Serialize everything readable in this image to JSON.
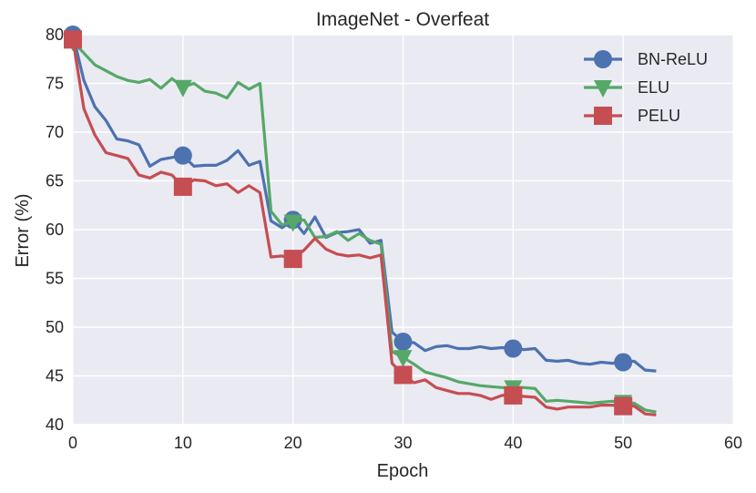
{
  "chart_data": {
    "type": "line",
    "title": "ImageNet - Overfeat",
    "xlabel": "Epoch",
    "ylabel": "Error (%)",
    "xlim": [
      0,
      60
    ],
    "ylim": [
      40,
      80
    ],
    "xticks": [
      0,
      10,
      20,
      30,
      40,
      50,
      60
    ],
    "yticks": [
      40,
      45,
      50,
      55,
      60,
      65,
      70,
      75,
      80
    ],
    "xtick_labels": [
      "0",
      "10",
      "20",
      "30",
      "40",
      "50",
      "60"
    ],
    "ytick_labels": [
      "40",
      "45",
      "50",
      "55",
      "60",
      "65",
      "70",
      "75",
      "80"
    ],
    "grid": true,
    "legend_position": "top-right",
    "marker_epochs": [
      0,
      10,
      20,
      30,
      40,
      50
    ],
    "colors": {
      "background": "#EAEAF2",
      "grid": "#FFFFFF"
    },
    "series": [
      {
        "name": "BN-ReLU",
        "color": "#4C72B0",
        "marker": "circle",
        "x": [
          0,
          1,
          2,
          3,
          4,
          5,
          6,
          7,
          8,
          9,
          10,
          11,
          12,
          13,
          14,
          15,
          16,
          17,
          18,
          19,
          20,
          21,
          22,
          23,
          24,
          25,
          26,
          27,
          28,
          29,
          30,
          31,
          32,
          33,
          34,
          35,
          36,
          37,
          38,
          39,
          40,
          41,
          42,
          43,
          44,
          45,
          46,
          47,
          48,
          49,
          50,
          51,
          52,
          53
        ],
        "values": [
          80,
          75.3,
          72.6,
          71.2,
          69.3,
          69.1,
          68.7,
          66.5,
          67.2,
          67.4,
          67.6,
          66.5,
          66.6,
          66.6,
          67.1,
          68.1,
          66.6,
          67.0,
          60.9,
          60.2,
          61.0,
          59.6,
          61.3,
          59.2,
          59.7,
          59.8,
          60.0,
          58.6,
          58.9,
          49.5,
          48.5,
          48.4,
          47.6,
          48.0,
          48.1,
          47.8,
          47.8,
          48.0,
          47.8,
          47.9,
          47.8,
          47.7,
          47.8,
          46.6,
          46.5,
          46.6,
          46.3,
          46.2,
          46.4,
          46.3,
          46.4,
          46.5,
          45.6,
          45.5
        ]
      },
      {
        "name": "ELU",
        "color": "#55A868",
        "marker": "triangle-down",
        "x": [
          0,
          1,
          2,
          3,
          4,
          5,
          6,
          7,
          8,
          9,
          10,
          11,
          12,
          13,
          14,
          15,
          16,
          17,
          18,
          19,
          20,
          21,
          22,
          23,
          24,
          25,
          26,
          27,
          28,
          29,
          30,
          31,
          32,
          33,
          34,
          35,
          36,
          37,
          38,
          39,
          40,
          41,
          42,
          43,
          44,
          45,
          46,
          47,
          48,
          49,
          50,
          51,
          52,
          53
        ],
        "values": [
          79.3,
          78.1,
          76.9,
          76.3,
          75.7,
          75.3,
          75.1,
          75.4,
          74.5,
          75.5,
          74.6,
          75.0,
          74.2,
          74.0,
          73.5,
          75.1,
          74.4,
          75.0,
          61.9,
          60.5,
          60.8,
          61.0,
          59.2,
          59.3,
          59.8,
          58.9,
          59.6,
          58.9,
          58.5,
          47.5,
          46.9,
          46.2,
          45.4,
          45.1,
          44.8,
          44.4,
          44.2,
          44.0,
          43.9,
          43.8,
          43.8,
          43.8,
          43.7,
          42.4,
          42.5,
          42.4,
          42.3,
          42.2,
          42.3,
          42.4,
          42.3,
          42.2,
          41.5,
          41.3
        ]
      },
      {
        "name": "PELU",
        "color": "#C44E52",
        "marker": "square",
        "x": [
          0,
          1,
          2,
          3,
          4,
          5,
          6,
          7,
          8,
          9,
          10,
          11,
          12,
          13,
          14,
          15,
          16,
          17,
          18,
          19,
          20,
          21,
          22,
          23,
          24,
          25,
          26,
          27,
          28,
          29,
          30,
          31,
          32,
          33,
          34,
          35,
          36,
          37,
          38,
          39,
          40,
          41,
          42,
          43,
          44,
          45,
          46,
          47,
          48,
          49,
          50,
          51,
          52,
          53
        ],
        "values": [
          79.5,
          72.4,
          69.7,
          67.9,
          67.6,
          67.3,
          65.6,
          65.3,
          65.9,
          65.6,
          64.4,
          65.1,
          65.0,
          64.5,
          64.7,
          63.8,
          64.5,
          63.8,
          57.2,
          57.3,
          57.0,
          57.9,
          59.1,
          58.0,
          57.5,
          57.3,
          57.4,
          57.1,
          57.4,
          46.3,
          45.1,
          44.3,
          44.6,
          43.8,
          43.5,
          43.2,
          43.2,
          43.0,
          42.6,
          43.0,
          43.0,
          42.9,
          42.8,
          41.8,
          41.6,
          41.8,
          41.8,
          41.8,
          42.0,
          42.0,
          41.9,
          41.9,
          41.1,
          41.0
        ]
      }
    ]
  }
}
